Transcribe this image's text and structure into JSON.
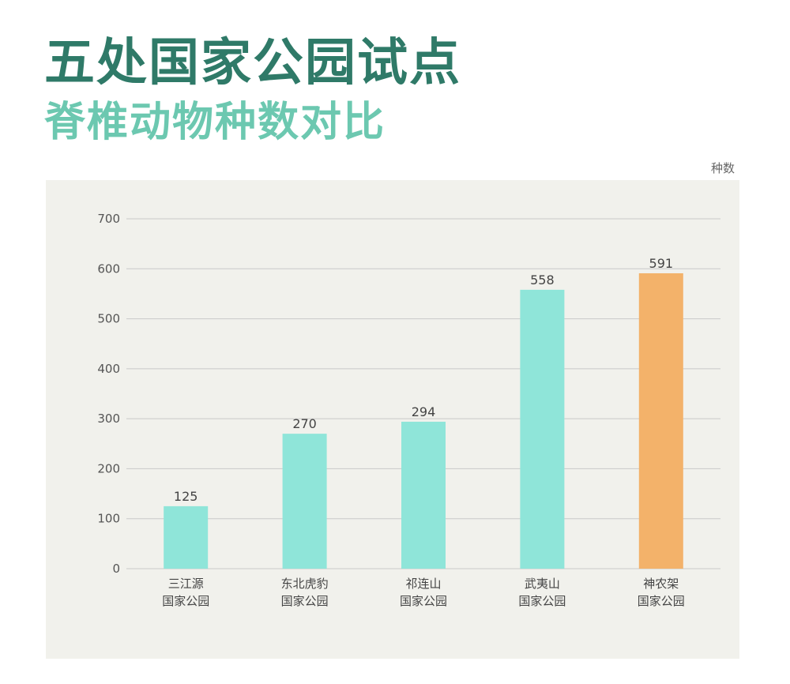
{
  "header": {
    "title": "五处国家公园试点",
    "subtitle": "脊椎动物种数对比",
    "unit": "种数"
  },
  "colors": {
    "title": "#2f7a68",
    "subtitle": "#6cc8b0",
    "bar": "#8fe5d9",
    "bar_highlight": "#f3b26a",
    "grid": "#c9c9c9",
    "panel": "#f1f1ec"
  },
  "chart_data": {
    "type": "bar",
    "title": "五处国家公园试点",
    "subtitle": "脊椎动物种数对比",
    "ylabel": "种数",
    "ylim": [
      0,
      700
    ],
    "yticks": [
      0,
      100,
      200,
      300,
      400,
      500,
      600,
      700
    ],
    "grid": true,
    "categories": [
      [
        "三江源",
        "国家公园"
      ],
      [
        "东北虎豹",
        "国家公园"
      ],
      [
        "祁连山",
        "国家公园"
      ],
      [
        "武夷山",
        "国家公园"
      ],
      [
        "神农架",
        "国家公园"
      ]
    ],
    "values": [
      125,
      270,
      294,
      558,
      591
    ],
    "highlight_index": 4
  }
}
